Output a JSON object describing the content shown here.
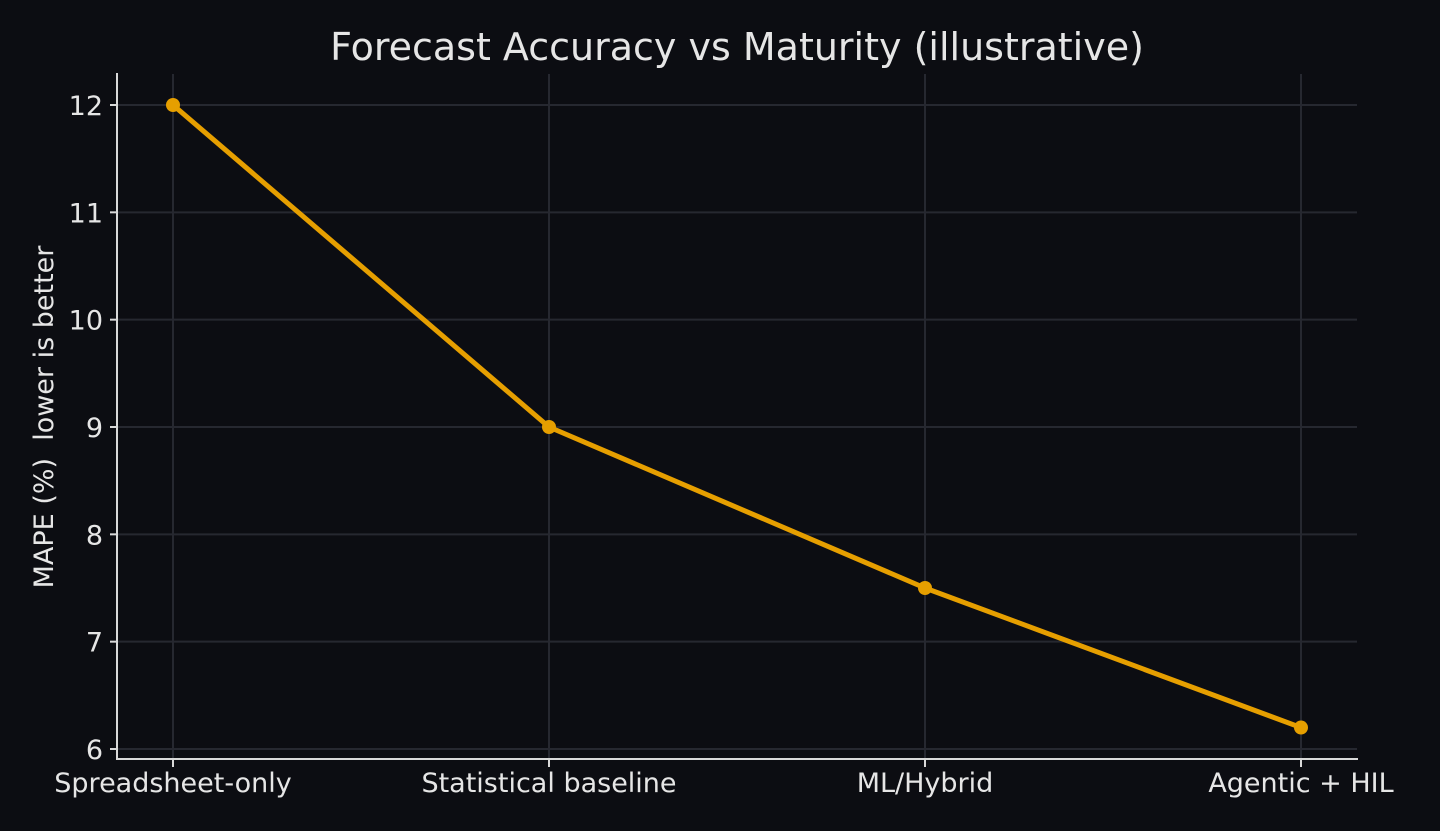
{
  "colors": {
    "background": "#0c0d12",
    "grid": "#262830",
    "axis": "#d9d9d9",
    "text": "#e6e6e6",
    "series": "#e69f00"
  },
  "chart_data": {
    "type": "line",
    "title": "Forecast Accuracy vs Maturity (illustrative)",
    "xlabel": "",
    "ylabel": "MAPE (%)  lower is better",
    "categories": [
      "Spreadsheet-only",
      "Statistical baseline",
      "ML/Hybrid",
      "Agentic + HIL"
    ],
    "series": [
      {
        "name": "MAPE (%)",
        "values": [
          12,
          9,
          7.5,
          6.2
        ],
        "marker": "circle",
        "color": "#e69f00"
      }
    ],
    "y_ticks": [
      6,
      7,
      8,
      9,
      10,
      11,
      12
    ],
    "ylim": [
      5.91,
      12.29
    ],
    "grid": true,
    "legend": null
  }
}
